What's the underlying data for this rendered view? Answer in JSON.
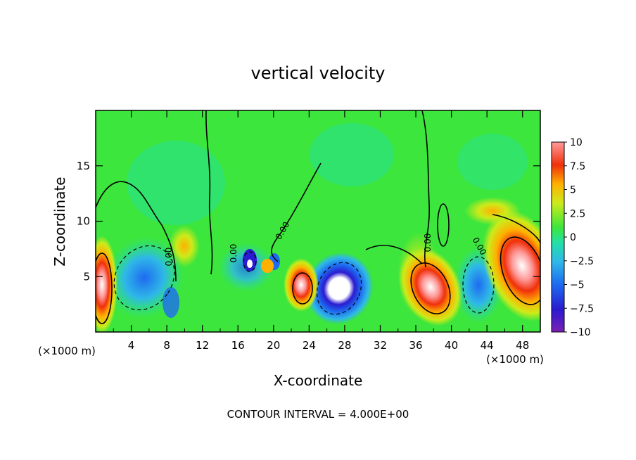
{
  "chart_data": {
    "type": "heatmap",
    "title": "vertical velocity",
    "xlabel": "X-coordinate",
    "ylabel": "Z-coordinate",
    "x_unit_label": "(×1000 m)",
    "x_unit_label_right": "(×1000 m)",
    "xlim": [
      0,
      50
    ],
    "ylim": [
      0,
      20
    ],
    "x_ticks": [
      4,
      8,
      12,
      16,
      20,
      24,
      28,
      32,
      36,
      40,
      44,
      48
    ],
    "y_ticks": [
      5,
      10,
      15
    ],
    "footer": "CONTOUR INTERVAL = 4.000E+00",
    "colorbar": {
      "ticks": [
        10,
        7.5,
        5,
        2.5,
        0,
        -2.5,
        -5,
        -7.5,
        -10
      ],
      "tick_labels": [
        "10",
        "7.5",
        "5",
        "2.5",
        "0",
        "−2.5",
        "−5",
        "−7.5",
        "−10"
      ],
      "range": [
        -10,
        10
      ],
      "colors": [
        "#7a1fb5",
        "#2a1bd0",
        "#1e6bf0",
        "#2fb8e8",
        "#22e0a8",
        "#3ce63c",
        "#cdea1a",
        "#ffb000",
        "#f0300c",
        "#ff9a9a"
      ]
    },
    "contour_labels": [
      "0.00",
      "0.00",
      "0.00",
      "0.00",
      "0.00"
    ]
  }
}
